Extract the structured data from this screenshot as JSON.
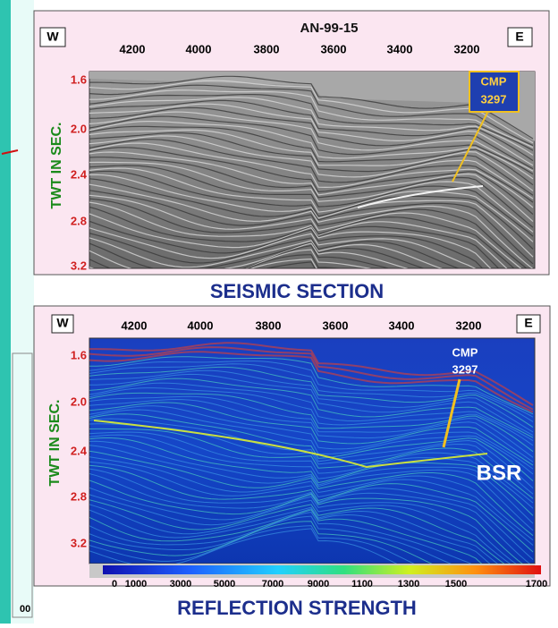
{
  "top_panel": {
    "title": "AN-99-15",
    "west": "W",
    "east": "E",
    "cmp_ticks": [
      "4200",
      "4000",
      "3800",
      "3600",
      "3400",
      "3200"
    ],
    "time_ticks": [
      "1.6",
      "2.0",
      "2.4",
      "2.8",
      "3.2"
    ],
    "axis_label": "TWT IN SEC.",
    "annotation": [
      "CMP",
      "3297"
    ],
    "caption": "SEISMIC SECTION"
  },
  "bottom_panel": {
    "west": "W",
    "east": "E",
    "cmp_ticks": [
      "4200",
      "4000",
      "3800",
      "3600",
      "3400",
      "3200"
    ],
    "time_ticks": [
      "1.6",
      "2.0",
      "2.4",
      "2.8",
      "3.2"
    ],
    "axis_label": "TWT IN SEC.",
    "annotation": [
      "CMP",
      "3297"
    ],
    "bsr_label": "BSR",
    "colorbar_ticks": [
      "0",
      "1000",
      "3000",
      "5000",
      "7000",
      "9000",
      "1100",
      "1300",
      "1500",
      "1700"
    ],
    "caption": "REFLECTION STRENGTH"
  },
  "side_fragment": "00"
}
